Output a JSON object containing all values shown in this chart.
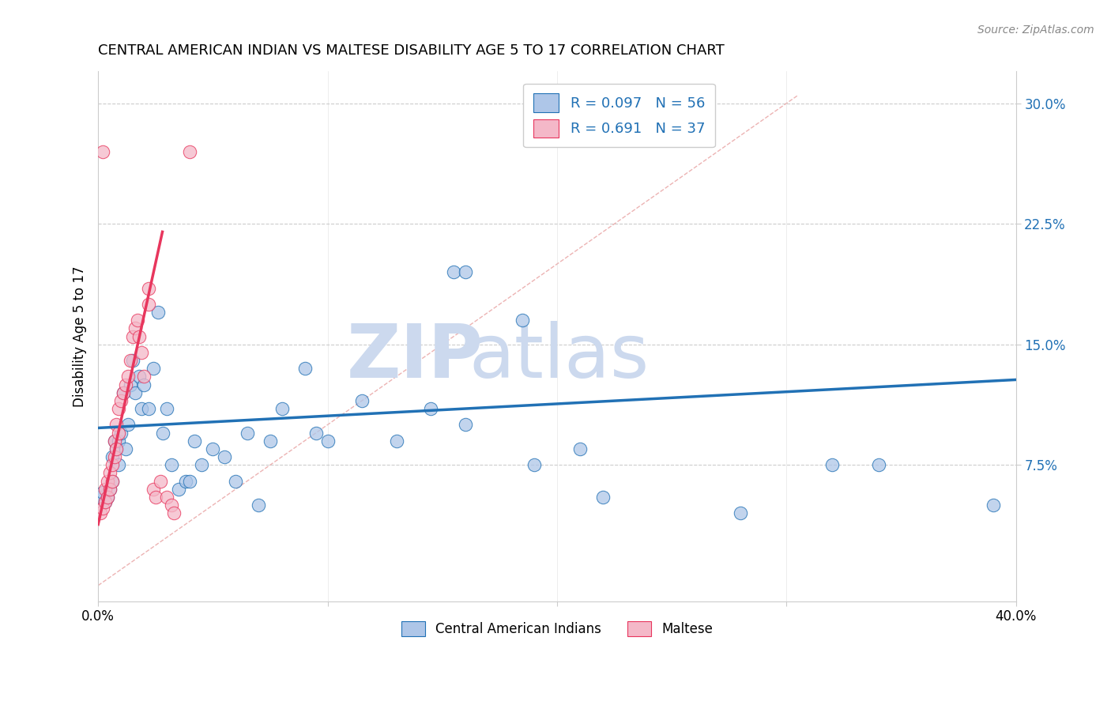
{
  "title": "CENTRAL AMERICAN INDIAN VS MALTESE DISABILITY AGE 5 TO 17 CORRELATION CHART",
  "source": "Source: ZipAtlas.com",
  "ylabel": "Disability Age 5 to 17",
  "xlim": [
    0,
    0.4
  ],
  "ylim": [
    -0.01,
    0.32
  ],
  "yticks": [
    0.075,
    0.15,
    0.225,
    0.3
  ],
  "yticklabels": [
    "7.5%",
    "15.0%",
    "22.5%",
    "30.0%"
  ],
  "legend_r1": "R = 0.097",
  "legend_n1": "N = 56",
  "legend_r2": "R = 0.691",
  "legend_n2": "N = 37",
  "blue_scatter": [
    [
      0.001,
      0.055
    ],
    [
      0.002,
      0.058
    ],
    [
      0.003,
      0.052
    ],
    [
      0.004,
      0.055
    ],
    [
      0.005,
      0.06
    ],
    [
      0.006,
      0.065
    ],
    [
      0.006,
      0.08
    ],
    [
      0.007,
      0.09
    ],
    [
      0.008,
      0.085
    ],
    [
      0.009,
      0.09
    ],
    [
      0.009,
      0.075
    ],
    [
      0.01,
      0.095
    ],
    [
      0.011,
      0.12
    ],
    [
      0.012,
      0.085
    ],
    [
      0.013,
      0.1
    ],
    [
      0.014,
      0.125
    ],
    [
      0.015,
      0.14
    ],
    [
      0.016,
      0.12
    ],
    [
      0.018,
      0.13
    ],
    [
      0.019,
      0.11
    ],
    [
      0.02,
      0.125
    ],
    [
      0.022,
      0.11
    ],
    [
      0.024,
      0.135
    ],
    [
      0.026,
      0.17
    ],
    [
      0.028,
      0.095
    ],
    [
      0.03,
      0.11
    ],
    [
      0.032,
      0.075
    ],
    [
      0.035,
      0.06
    ],
    [
      0.038,
      0.065
    ],
    [
      0.04,
      0.065
    ],
    [
      0.042,
      0.09
    ],
    [
      0.045,
      0.075
    ],
    [
      0.05,
      0.085
    ],
    [
      0.055,
      0.08
    ],
    [
      0.06,
      0.065
    ],
    [
      0.065,
      0.095
    ],
    [
      0.07,
      0.05
    ],
    [
      0.075,
      0.09
    ],
    [
      0.08,
      0.11
    ],
    [
      0.09,
      0.135
    ],
    [
      0.095,
      0.095
    ],
    [
      0.1,
      0.09
    ],
    [
      0.115,
      0.115
    ],
    [
      0.13,
      0.09
    ],
    [
      0.145,
      0.11
    ],
    [
      0.16,
      0.1
    ],
    [
      0.155,
      0.195
    ],
    [
      0.16,
      0.195
    ],
    [
      0.185,
      0.165
    ],
    [
      0.19,
      0.075
    ],
    [
      0.21,
      0.085
    ],
    [
      0.22,
      0.055
    ],
    [
      0.28,
      0.045
    ],
    [
      0.32,
      0.075
    ],
    [
      0.34,
      0.075
    ],
    [
      0.39,
      0.05
    ]
  ],
  "pink_scatter": [
    [
      0.001,
      0.045
    ],
    [
      0.002,
      0.048
    ],
    [
      0.003,
      0.052
    ],
    [
      0.003,
      0.06
    ],
    [
      0.004,
      0.055
    ],
    [
      0.004,
      0.065
    ],
    [
      0.005,
      0.06
    ],
    [
      0.005,
      0.07
    ],
    [
      0.006,
      0.075
    ],
    [
      0.006,
      0.065
    ],
    [
      0.007,
      0.08
    ],
    [
      0.007,
      0.09
    ],
    [
      0.008,
      0.085
    ],
    [
      0.008,
      0.1
    ],
    [
      0.009,
      0.095
    ],
    [
      0.009,
      0.11
    ],
    [
      0.01,
      0.115
    ],
    [
      0.011,
      0.12
    ],
    [
      0.012,
      0.125
    ],
    [
      0.013,
      0.13
    ],
    [
      0.014,
      0.14
    ],
    [
      0.015,
      0.155
    ],
    [
      0.016,
      0.16
    ],
    [
      0.017,
      0.165
    ],
    [
      0.018,
      0.155
    ],
    [
      0.019,
      0.145
    ],
    [
      0.02,
      0.13
    ],
    [
      0.022,
      0.185
    ],
    [
      0.022,
      0.175
    ],
    [
      0.024,
      0.06
    ],
    [
      0.025,
      0.055
    ],
    [
      0.027,
      0.065
    ],
    [
      0.03,
      0.055
    ],
    [
      0.032,
      0.05
    ],
    [
      0.033,
      0.045
    ],
    [
      0.04,
      0.27
    ],
    [
      0.002,
      0.27
    ]
  ],
  "blue_line_x": [
    0.0,
    0.4
  ],
  "blue_line_y": [
    0.098,
    0.128
  ],
  "pink_line_x": [
    0.0,
    0.028
  ],
  "pink_line_y": [
    0.038,
    0.22
  ],
  "ref_line_x": [
    0.0,
    0.305
  ],
  "ref_line_y": [
    0.0,
    0.305
  ],
  "blue_color": "#aec6e8",
  "pink_color": "#f4b8c8",
  "blue_line_color": "#2171b5",
  "pink_line_color": "#e8365d",
  "ref_line_color": "#e8a0a0",
  "watermark_zip": "ZIP",
  "watermark_atlas": "atlas",
  "watermark_color": "#ccd9ee",
  "background_color": "#ffffff",
  "grid_color": "#cccccc"
}
